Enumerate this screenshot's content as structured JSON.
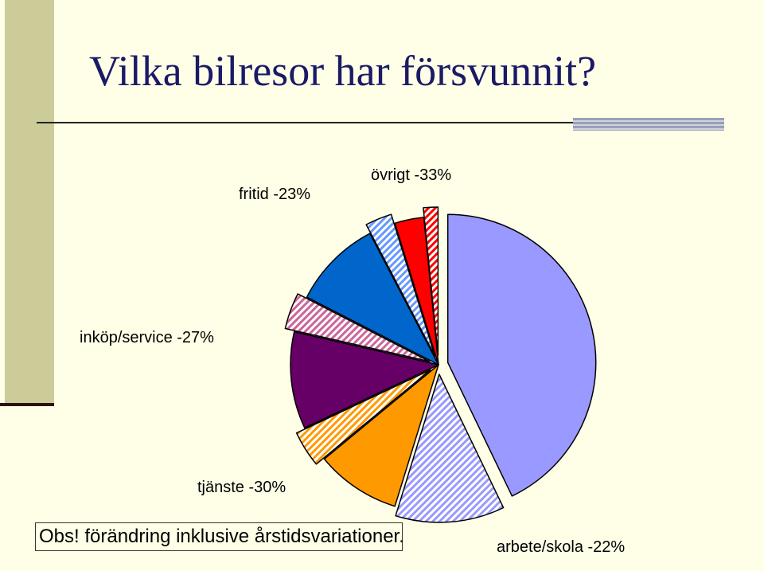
{
  "title": "Vilka bilresor har försvunnit?",
  "note": "Obs! förändring inklusive årstidsvariationer.",
  "chart_data": {
    "type": "pie",
    "title": "",
    "slices": [
      {
        "key": "arbete_remain",
        "value": 162,
        "color": "#9999FF",
        "pattern": false,
        "exploded": true
      },
      {
        "key": "arbete_lost",
        "value": 45,
        "color": "#9999FF",
        "pattern": true,
        "exploded": true
      },
      {
        "key": "tjanste_remain",
        "value": 35,
        "color": "#FF9900",
        "pattern": false,
        "exploded": false
      },
      {
        "key": "tjanste_lost",
        "value": 15,
        "color": "#FF9900",
        "pattern": true,
        "exploded": true
      },
      {
        "key": "inkop_remain",
        "value": 40,
        "color": "#660066",
        "pattern": false,
        "exploded": false
      },
      {
        "key": "inkop_lost",
        "value": 15,
        "color": "#CC6699",
        "pattern": true,
        "exploded": true
      },
      {
        "key": "fritid_remain",
        "value": 37,
        "color": "#0066CC",
        "pattern": false,
        "exploded": false
      },
      {
        "key": "fritid_lost",
        "value": 11,
        "color": "#6699FF",
        "pattern": true,
        "exploded": true
      },
      {
        "key": "ovrigt_remain",
        "value": 12,
        "color": "#FF0000",
        "pattern": false,
        "exploded": false
      },
      {
        "key": "ovrigt_lost",
        "value": 6,
        "color": "#FF0000",
        "pattern": true,
        "exploded": true
      }
    ],
    "labels": {
      "arbete": "arbete/skola -22%",
      "tjanste": "tjänste -30%",
      "inkop": "inköp/service -27%",
      "fritid": "fritid -23%",
      "ovrigt": "övrigt -33%"
    },
    "legend": "none"
  }
}
